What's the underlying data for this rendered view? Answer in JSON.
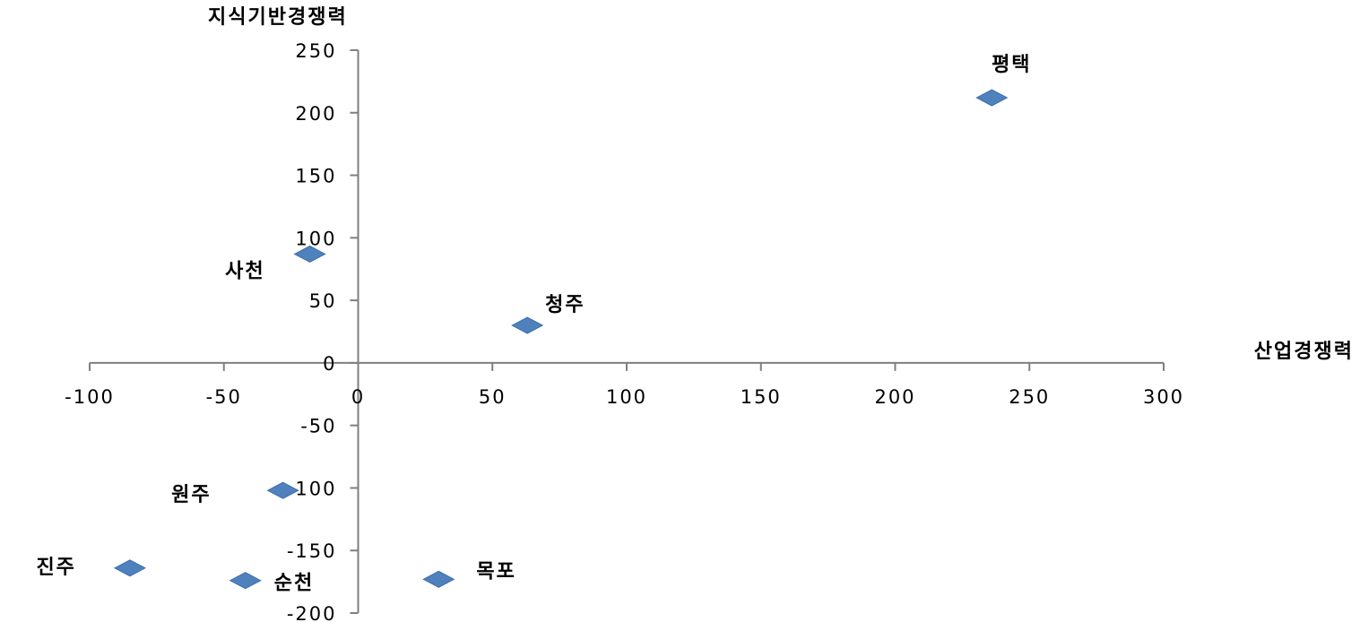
{
  "chart_data": {
    "type": "scatter",
    "xlabel": "산업경쟁력",
    "ylabel": "지식기반경쟁력",
    "xlim": [
      -100,
      300
    ],
    "ylim": [
      -200,
      250
    ],
    "x_ticks": [
      "-100",
      "-50",
      "0",
      "50",
      "100",
      "150",
      "200",
      "250",
      "300"
    ],
    "y_ticks": [
      "250",
      "200",
      "150",
      "100",
      "50",
      "0",
      "-50",
      "-100",
      "-150",
      "-200"
    ],
    "marker_color": "#4f81bd",
    "points": [
      {
        "label": "평택",
        "x": 236,
        "y": 212
      },
      {
        "label": "사천",
        "x": -18,
        "y": 87
      },
      {
        "label": "청주",
        "x": 63,
        "y": 30
      },
      {
        "label": "원주",
        "x": -28,
        "y": -102
      },
      {
        "label": "진주",
        "x": -85,
        "y": -164
      },
      {
        "label": "순천",
        "x": -42,
        "y": -174
      },
      {
        "label": "목포",
        "x": 30,
        "y": -173
      }
    ]
  }
}
